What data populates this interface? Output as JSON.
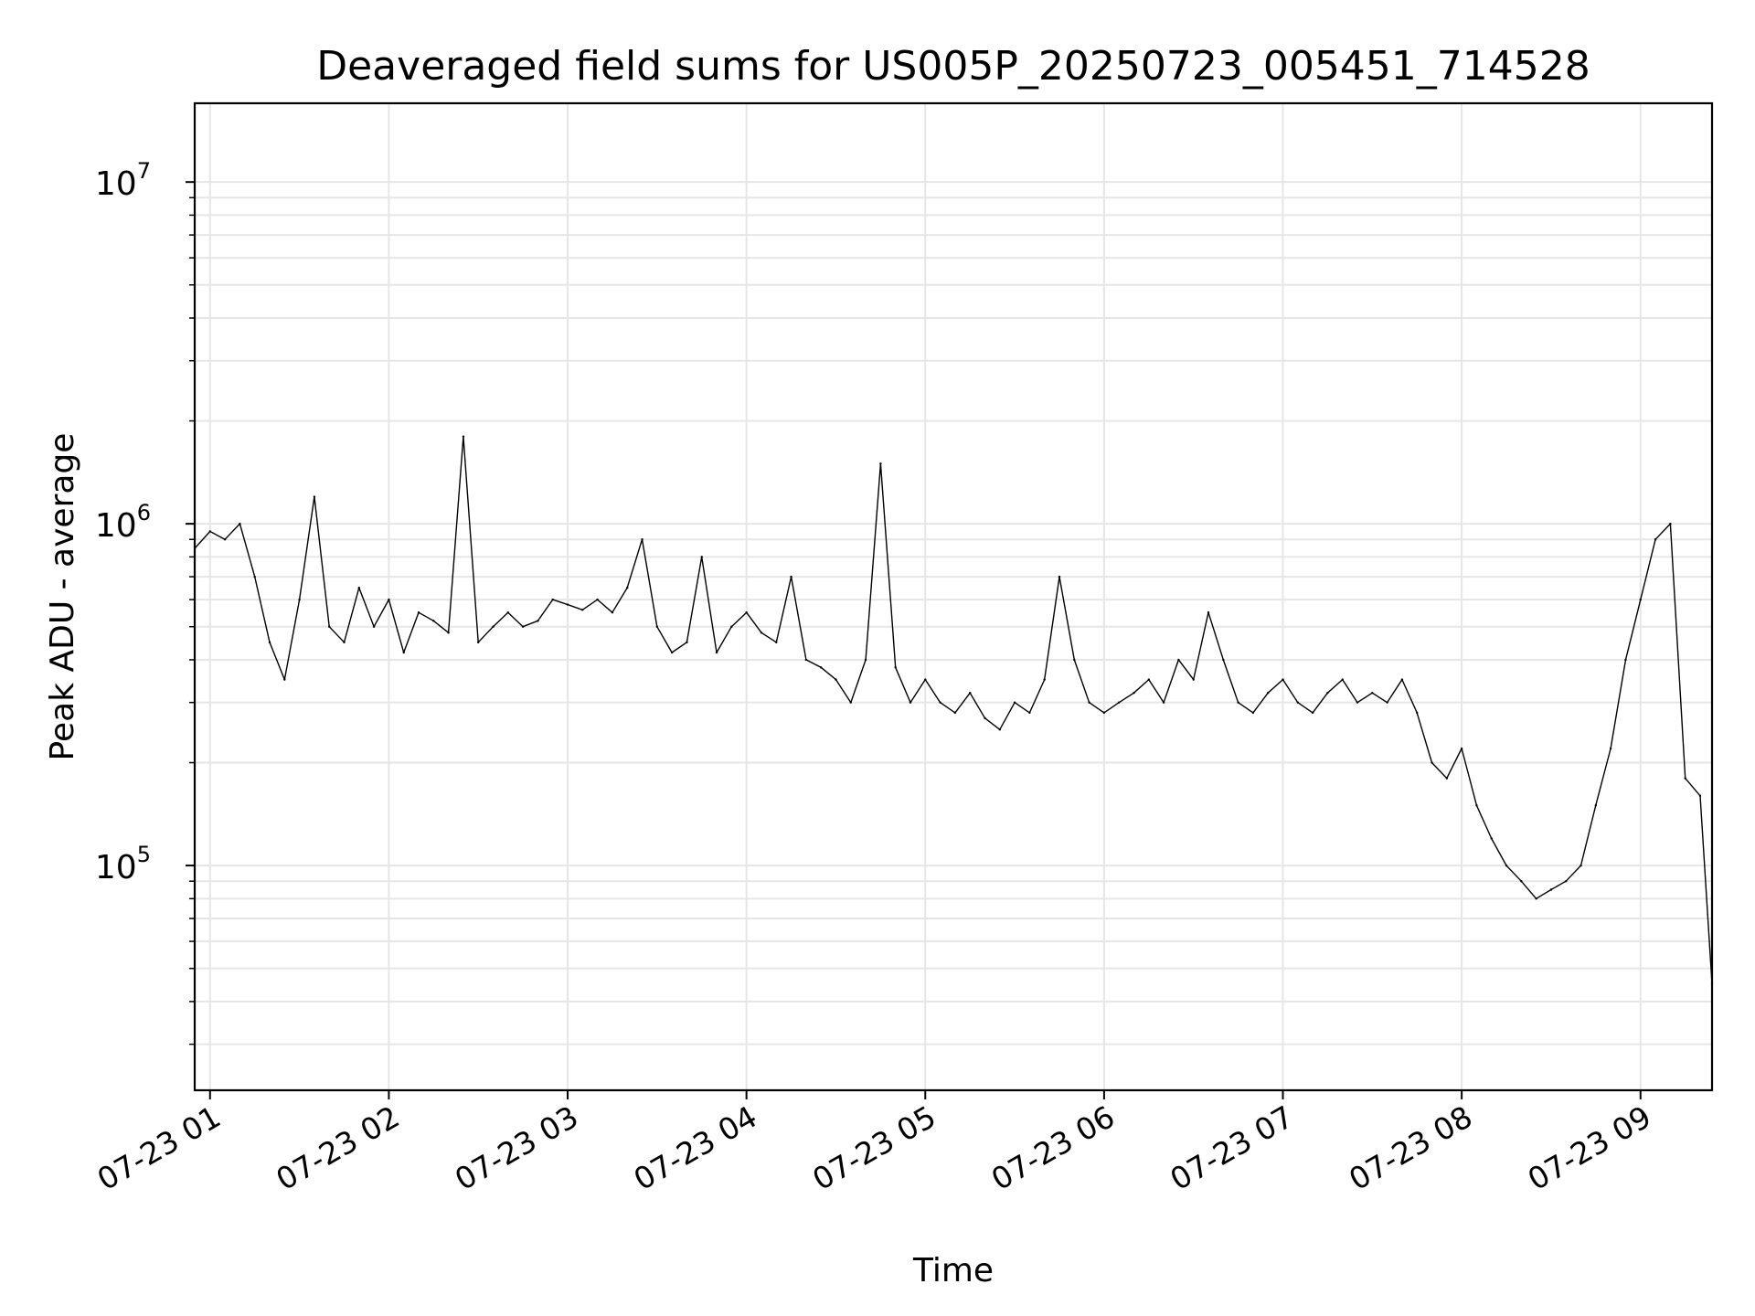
{
  "chart_data": {
    "type": "line",
    "title": "Deaveraged field sums for US005P_20250723_005451_714528",
    "xlabel": "Time",
    "ylabel": "Peak ADU - average",
    "yscale": "log",
    "ylim": [
      22000,
      17000000
    ],
    "xlim": [
      "2025-07-23 00:54:51",
      "2025-07-23 09:24:00"
    ],
    "grid": true,
    "line_color": "#000000",
    "grid_color": "#e6e6e6",
    "x_ticks": [
      {
        "t": "2025-07-23 01:00",
        "label": "07-23 01"
      },
      {
        "t": "2025-07-23 02:00",
        "label": "07-23 02"
      },
      {
        "t": "2025-07-23 03:00",
        "label": "07-23 03"
      },
      {
        "t": "2025-07-23 04:00",
        "label": "07-23 04"
      },
      {
        "t": "2025-07-23 05:00",
        "label": "07-23 05"
      },
      {
        "t": "2025-07-23 06:00",
        "label": "07-23 06"
      },
      {
        "t": "2025-07-23 07:00",
        "label": "07-23 07"
      },
      {
        "t": "2025-07-23 08:00",
        "label": "07-23 08"
      },
      {
        "t": "2025-07-23 09:00",
        "label": "07-23 09"
      }
    ],
    "y_ticks": [
      {
        "value": 100000,
        "base": "10",
        "exp": "5"
      },
      {
        "value": 1000000,
        "base": "10",
        "exp": "6"
      },
      {
        "value": 10000000,
        "base": "10",
        "exp": "7"
      }
    ],
    "series": [
      {
        "x": [
          "2025-07-23 00:55",
          "2025-07-23 01:00",
          "2025-07-23 01:05",
          "2025-07-23 01:10",
          "2025-07-23 01:15",
          "2025-07-23 01:20",
          "2025-07-23 01:25",
          "2025-07-23 01:30",
          "2025-07-23 01:35",
          "2025-07-23 01:40",
          "2025-07-23 01:45",
          "2025-07-23 01:50",
          "2025-07-23 01:55",
          "2025-07-23 02:00",
          "2025-07-23 02:05",
          "2025-07-23 02:10",
          "2025-07-23 02:15",
          "2025-07-23 02:20",
          "2025-07-23 02:25",
          "2025-07-23 02:30",
          "2025-07-23 02:35",
          "2025-07-23 02:40",
          "2025-07-23 02:45",
          "2025-07-23 02:50",
          "2025-07-23 02:55",
          "2025-07-23 03:00",
          "2025-07-23 03:05",
          "2025-07-23 03:10",
          "2025-07-23 03:15",
          "2025-07-23 03:20",
          "2025-07-23 03:25",
          "2025-07-23 03:30",
          "2025-07-23 03:35",
          "2025-07-23 03:40",
          "2025-07-23 03:45",
          "2025-07-23 03:50",
          "2025-07-23 03:55",
          "2025-07-23 04:00",
          "2025-07-23 04:05",
          "2025-07-23 04:10",
          "2025-07-23 04:15",
          "2025-07-23 04:20",
          "2025-07-23 04:25",
          "2025-07-23 04:30",
          "2025-07-23 04:35",
          "2025-07-23 04:40",
          "2025-07-23 04:45",
          "2025-07-23 04:50",
          "2025-07-23 04:55",
          "2025-07-23 05:00",
          "2025-07-23 05:05",
          "2025-07-23 05:10",
          "2025-07-23 05:15",
          "2025-07-23 05:20",
          "2025-07-23 05:25",
          "2025-07-23 05:30",
          "2025-07-23 05:35",
          "2025-07-23 05:40",
          "2025-07-23 05:45",
          "2025-07-23 05:50",
          "2025-07-23 05:55",
          "2025-07-23 06:00",
          "2025-07-23 06:05",
          "2025-07-23 06:10",
          "2025-07-23 06:15",
          "2025-07-23 06:20",
          "2025-07-23 06:25",
          "2025-07-23 06:30",
          "2025-07-23 06:35",
          "2025-07-23 06:40",
          "2025-07-23 06:45",
          "2025-07-23 06:50",
          "2025-07-23 06:55",
          "2025-07-23 07:00",
          "2025-07-23 07:05",
          "2025-07-23 07:10",
          "2025-07-23 07:15",
          "2025-07-23 07:20",
          "2025-07-23 07:25",
          "2025-07-23 07:30",
          "2025-07-23 07:35",
          "2025-07-23 07:40",
          "2025-07-23 07:45",
          "2025-07-23 07:50",
          "2025-07-23 07:55",
          "2025-07-23 08:00",
          "2025-07-23 08:05",
          "2025-07-23 08:10",
          "2025-07-23 08:15",
          "2025-07-23 08:20",
          "2025-07-23 08:25",
          "2025-07-23 08:30",
          "2025-07-23 08:35",
          "2025-07-23 08:40",
          "2025-07-23 08:45",
          "2025-07-23 08:50",
          "2025-07-23 08:55",
          "2025-07-23 09:00",
          "2025-07-23 09:05",
          "2025-07-23 09:10",
          "2025-07-23 09:15",
          "2025-07-23 09:20",
          "2025-07-23 09:24"
        ],
        "y": [
          850000,
          950000,
          900000,
          1000000,
          700000,
          450000,
          350000,
          600000,
          1200000,
          500000,
          450000,
          650000,
          500000,
          600000,
          420000,
          550000,
          520000,
          480000,
          1800000,
          450000,
          500000,
          550000,
          500000,
          520000,
          600000,
          580000,
          560000,
          600000,
          550000,
          650000,
          900000,
          500000,
          420000,
          450000,
          800000,
          420000,
          500000,
          550000,
          480000,
          450000,
          700000,
          400000,
          380000,
          350000,
          300000,
          400000,
          1500000,
          380000,
          300000,
          350000,
          300000,
          280000,
          320000,
          270000,
          250000,
          300000,
          280000,
          350000,
          700000,
          400000,
          300000,
          280000,
          300000,
          320000,
          350000,
          300000,
          400000,
          350000,
          550000,
          400000,
          300000,
          280000,
          320000,
          350000,
          300000,
          280000,
          320000,
          350000,
          300000,
          320000,
          300000,
          350000,
          280000,
          200000,
          180000,
          220000,
          150000,
          120000,
          100000,
          90000,
          80000,
          85000,
          90000,
          100000,
          150000,
          220000,
          400000,
          600000,
          900000,
          1000000,
          180000,
          160000,
          45000
        ]
      }
    ]
  }
}
